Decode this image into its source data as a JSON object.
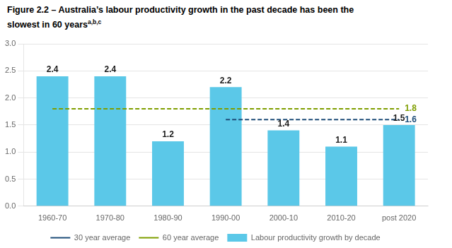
{
  "chart_data": {
    "type": "bar",
    "title": [
      "Figure 2.2 – Australia’s labour productivity growth in the past decade has been the",
      "slowest in 60 years"
    ],
    "annotations": [
      "a,b,c"
    ],
    "categories": [
      "1960-70",
      "1970-80",
      "1980-90",
      "1990-00",
      "2000-10",
      "2010-20",
      "post 2020"
    ],
    "series": [
      {
        "name": "Labour productivity growth by decade",
        "type": "bar",
        "color": "#5BC8E8",
        "values": [
          2.4,
          2.4,
          1.2,
          2.2,
          1.4,
          1.1,
          1.5
        ]
      },
      {
        "name": "30 year average",
        "type": "line",
        "line_style": "dashed",
        "color": "#1F4E79",
        "values": [
          null,
          null,
          null,
          1.6,
          1.6,
          1.6,
          1.6
        ]
      },
      {
        "name": "60 year average",
        "type": "line",
        "line_style": "dashed",
        "color": "#7F9E00",
        "values": [
          1.8,
          1.8,
          1.8,
          1.8,
          1.8,
          1.8,
          1.8
        ]
      }
    ],
    "ylim": [
      0,
      3.0
    ],
    "yticks": [
      {
        "value": 0,
        "label": "0.0"
      },
      0.5,
      {
        "value": 1,
        "label": "1.0"
      },
      1.5,
      {
        "value": 2,
        "label": "2.0"
      },
      2.5,
      {
        "value": 3,
        "label": "3.0"
      }
    ],
    "grid": true,
    "legend": "bottom",
    "data_labels": true
  }
}
